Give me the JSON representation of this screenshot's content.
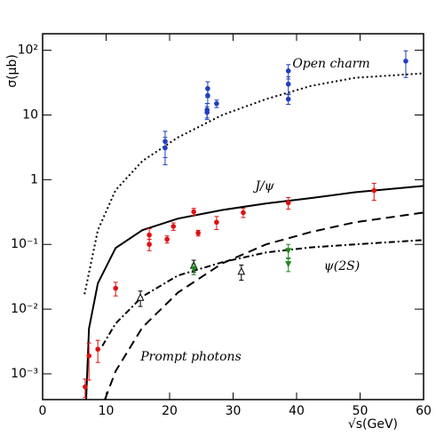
{
  "chart_data": {
    "type": "scatter",
    "x_label": "√s(GeV)",
    "y_label": "σ(μb)",
    "xlim": [
      0,
      60
    ],
    "xticks": [
      0,
      10,
      20,
      30,
      40,
      50,
      60
    ],
    "ylim": [
      0.0004,
      180
    ],
    "y_log": true,
    "yticks": [
      {
        "value": 100,
        "label": "10²"
      },
      {
        "value": 10,
        "label": "10"
      },
      {
        "value": 1,
        "label": "1"
      },
      {
        "value": 0.1,
        "label": "10⁻¹"
      },
      {
        "value": 0.01,
        "label": "10⁻²"
      },
      {
        "value": 0.001,
        "label": "10⁻³"
      }
    ],
    "series": [
      {
        "name": "Open charm",
        "kind": "curve",
        "dash": "dot",
        "color": "#000000",
        "x": [
          6.6,
          8.7,
          11.5,
          15.7,
          21.3,
          28.3,
          35.2,
          42.2,
          49.2,
          60
        ],
        "values": [
          0.017,
          0.166,
          0.69,
          1.94,
          4.5,
          10,
          17.6,
          28,
          37.6,
          44
        ]
      },
      {
        "name": "J/ψ",
        "kind": "curve",
        "dash": "solid",
        "color": "#000000",
        "x": [
          6.85,
          7.3,
          8.7,
          11.5,
          15.7,
          21.3,
          28.3,
          35.2,
          42.2,
          49.2,
          60
        ],
        "values": [
          0.0004,
          0.005,
          0.025,
          0.088,
          0.166,
          0.25,
          0.34,
          0.43,
          0.52,
          0.64,
          0.8
        ]
      },
      {
        "name": "Prompt photons",
        "kind": "curve",
        "dash": "dash",
        "color": "#000000",
        "x": [
          9.8,
          11.5,
          15.7,
          21.3,
          28.3,
          35.2,
          42.2,
          49.2,
          60
        ],
        "values": [
          0.0004,
          0.0011,
          0.0052,
          0.018,
          0.051,
          0.1,
          0.155,
          0.22,
          0.31
        ]
      },
      {
        "name": "ψ(2S)",
        "kind": "curve",
        "dash": "dashdot",
        "color": "#000000",
        "x": [
          9.4,
          11.5,
          15.7,
          21.3,
          28.3,
          35.2,
          42.2,
          49.2,
          60
        ],
        "values": [
          0.0027,
          0.006,
          0.0156,
          0.033,
          0.053,
          0.075,
          0.09,
          0.1,
          0.117
        ]
      },
      {
        "kind": "points",
        "marker": "circle",
        "color": "#1f3fbf",
        "x": [
          19.3,
          19.3,
          25.9,
          26.0,
          26.0,
          25.9,
          27.4,
          38.7,
          38.7,
          38.7,
          57.2
        ],
        "values": [
          3.9,
          3.1,
          12,
          20,
          25.6,
          11,
          15,
          48,
          30,
          17.6,
          68
        ],
        "errors": [
          1.7,
          1.4,
          3,
          5,
          7,
          2.5,
          2,
          12,
          9,
          3,
          30
        ]
      },
      {
        "kind": "points",
        "marker": "circle",
        "color": "#e01010",
        "x": [
          6.7,
          7.3,
          8.7,
          11.5,
          16.8,
          16.8,
          19.6,
          20.6,
          23.8,
          24.5,
          27.4,
          31.6,
          38.7,
          52.2
        ],
        "values": [
          0.00063,
          0.0019,
          0.0024,
          0.021,
          0.14,
          0.1,
          0.12,
          0.19,
          0.32,
          0.15,
          0.22,
          0.31,
          0.44,
          0.68
        ],
        "errors": [
          0.0002,
          0.0011,
          0.0009,
          0.005,
          0.035,
          0.02,
          0.015,
          0.025,
          0.04,
          0.015,
          0.05,
          0.05,
          0.09,
          0.2
        ]
      },
      {
        "kind": "points",
        "marker": "triangle-open",
        "color": "#000000",
        "x": [
          15.4,
          23.8,
          31.3
        ],
        "values": [
          0.015,
          0.047,
          0.038
        ],
        "errors": [
          0.004,
          0.01,
          0.01
        ]
      },
      {
        "kind": "points",
        "marker": "triangle-down",
        "color": "#1a8a1a",
        "x": [
          23.8,
          38.7,
          38.7
        ],
        "values": [
          0.042,
          0.08,
          0.05
        ],
        "errors": [
          0.008,
          0.02,
          0.012
        ]
      }
    ]
  }
}
